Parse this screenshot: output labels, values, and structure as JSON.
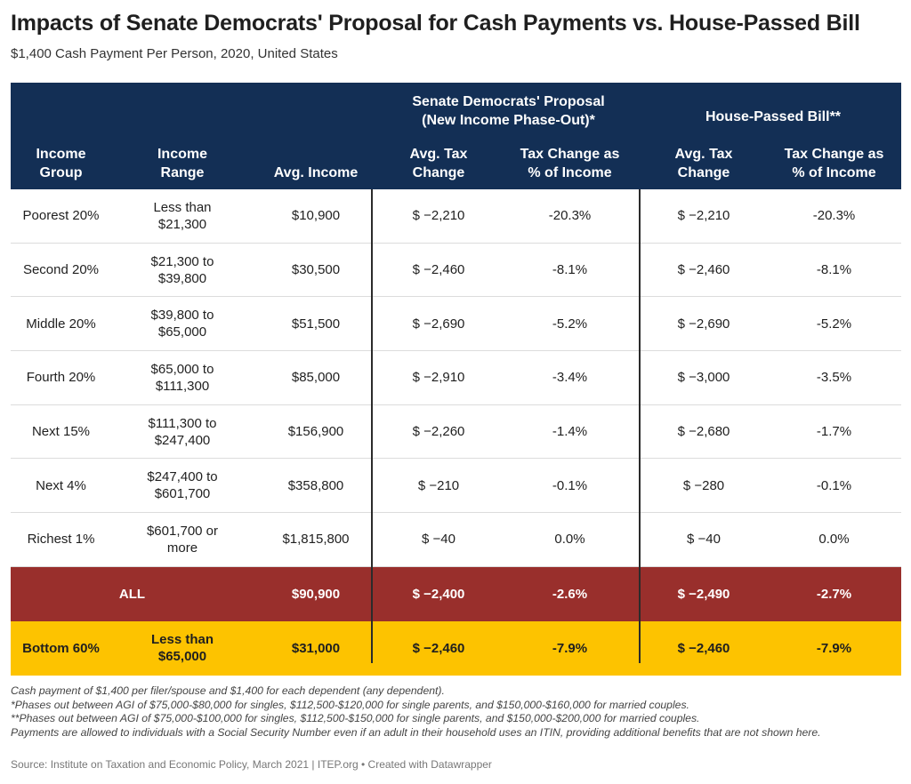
{
  "title": "Impacts of Senate Democrats' Proposal for Cash Payments vs. House-Passed Bill",
  "subtitle": "$1,400 Cash Payment Per Person, 2020, United States",
  "header": {
    "senate_group_line1": "Senate Democrats' Proposal",
    "senate_group_line2": "(New Income Phase-Out)*",
    "house_group": "House-Passed Bill**",
    "col_income_group_1": "Income",
    "col_income_group_2": "Group",
    "col_income_range_1": "Income",
    "col_income_range_2": "Range",
    "col_avg_income": "Avg. Income",
    "col_avg_tax_1": "Avg. Tax",
    "col_avg_tax_2": "Change",
    "col_pct_1": "Tax Change as",
    "col_pct_2": "% of Income"
  },
  "rows": [
    {
      "group": "Poorest 20%",
      "range1": "Less than",
      "range2": "$21,300",
      "avg_income": "$10,900",
      "s_tax": "$ −2,210",
      "s_pct": "-20.3%",
      "h_tax": "$ −2,210",
      "h_pct": "-20.3%"
    },
    {
      "group": "Second 20%",
      "range1": "$21,300 to",
      "range2": "$39,800",
      "avg_income": "$30,500",
      "s_tax": "$ −2,460",
      "s_pct": "-8.1%",
      "h_tax": "$ −2,460",
      "h_pct": "-8.1%"
    },
    {
      "group": "Middle 20%",
      "range1": "$39,800 to",
      "range2": "$65,000",
      "avg_income": "$51,500",
      "s_tax": "$ −2,690",
      "s_pct": "-5.2%",
      "h_tax": "$ −2,690",
      "h_pct": "-5.2%"
    },
    {
      "group": "Fourth 20%",
      "range1": "$65,000 to",
      "range2": "$111,300",
      "avg_income": "$85,000",
      "s_tax": "$ −2,910",
      "s_pct": "-3.4%",
      "h_tax": "$ −3,000",
      "h_pct": "-3.5%"
    },
    {
      "group": "Next 15%",
      "range1": "$111,300 to",
      "range2": "$247,400",
      "avg_income": "$156,900",
      "s_tax": "$ −2,260",
      "s_pct": "-1.4%",
      "h_tax": "$ −2,680",
      "h_pct": "-1.7%"
    },
    {
      "group": "Next 4%",
      "range1": "$247,400 to",
      "range2": "$601,700",
      "avg_income": "$358,800",
      "s_tax": "$ −210",
      "s_pct": "-0.1%",
      "h_tax": "$ −280",
      "h_pct": "-0.1%"
    },
    {
      "group": "Richest 1%",
      "range1": "$601,700 or",
      "range2": "more",
      "avg_income": "$1,815,800",
      "s_tax": "$ −40",
      "s_pct": "0.0%",
      "h_tax": "$ −40",
      "h_pct": "0.0%"
    }
  ],
  "all_row": {
    "group": "ALL",
    "avg_income": "$90,900",
    "s_tax": "$ −2,400",
    "s_pct": "-2.6%",
    "h_tax": "$ −2,490",
    "h_pct": "-2.7%"
  },
  "bottom_row": {
    "group": "Bottom 60%",
    "range1": "Less than",
    "range2": "$65,000",
    "avg_income": "$31,000",
    "s_tax": "$ −2,460",
    "s_pct": "-7.9%",
    "h_tax": "$ −2,460",
    "h_pct": "-7.9%"
  },
  "notes": [
    "Cash payment of $1,400 per filer/spouse and $1,400 for each dependent (any dependent).",
    "*Phases out between AGI of $75,000-$80,000 for singles, $112,500-$120,000 for single parents, and $150,000-$160,000 for married couples.",
    "**Phases out between AGI of $75,000-$100,000 for singles, $112,500-$150,000 for single parents, and $150,000-$200,000 for married couples.",
    "Payments are allowed to individuals with a Social Security Number even if an adult in their household uses an ITIN, providing additional benefits that are not shown here."
  ],
  "source": "Source: Institute on Taxation and Economic Policy, March 2021 | ITEP.org • Created with Datawrapper",
  "colors": {
    "header": "#132f55",
    "all_row": "#992f2c",
    "bottom_row": "#fdc300"
  }
}
